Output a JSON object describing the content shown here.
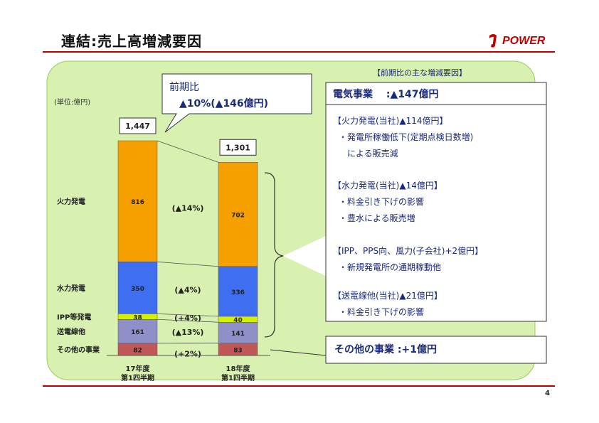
{
  "page": {
    "title": "連結:売上高増減要因",
    "logo_text": "POWER",
    "page_number": "4"
  },
  "colors": {
    "background_panel": "#d8f0b0",
    "thermal": "#f6a000",
    "hydro": "#3f6ef0",
    "ipp": "#d4f000",
    "transmission": "#9090c8",
    "other": "#c05858",
    "rule": "#c00000"
  },
  "callout": {
    "line1": "前期比",
    "line2": "▲10%(▲146億円)"
  },
  "legend_header": "【前期比の主な増減要因】",
  "factors": {
    "electric_heading": "電気事業　 :▲147億円",
    "items": [
      {
        "heading": "【火力発電(当社)▲114億円】",
        "lines": [
          "・発電所稼働低下(定期点検日数増)",
          "　による販売減"
        ]
      },
      {
        "heading": "【水力発電(当社)▲14億円】",
        "lines": [
          "・料金引き下げの影響",
          "・豊水による販売増"
        ]
      },
      {
        "heading": "【IPP、PPS向、風力(子会社)+2億円】",
        "lines": [
          "・新規発電所の通期稼動他"
        ]
      },
      {
        "heading": "【送電線他(当社)▲21億円】",
        "lines": [
          "・料金引き下げの影響"
        ]
      }
    ],
    "other_business": "その他の事業 :+1億円"
  },
  "chart_data": {
    "type": "bar",
    "stacked": true,
    "unit_label": "(単位:億円)",
    "categories": [
      "17年度\n第1四半期",
      "18年度\n第1四半期"
    ],
    "totals": [
      1447,
      1301
    ],
    "total_labels": [
      "1,447",
      "1,301"
    ],
    "series": [
      {
        "name": "その他の事業",
        "values": [
          82,
          83
        ],
        "change": "(+2%)"
      },
      {
        "name": "送電線他",
        "values": [
          161,
          141
        ],
        "change": "(▲13%)"
      },
      {
        "name": "IPP等発電",
        "values": [
          38,
          40
        ],
        "change": "(+4%)"
      },
      {
        "name": "水力発電",
        "values": [
          350,
          336
        ],
        "change": "(▲4%)"
      },
      {
        "name": "火力発電",
        "values": [
          816,
          702
        ],
        "change": "(▲14%)"
      }
    ],
    "ylim": [
      0,
      1447
    ]
  }
}
